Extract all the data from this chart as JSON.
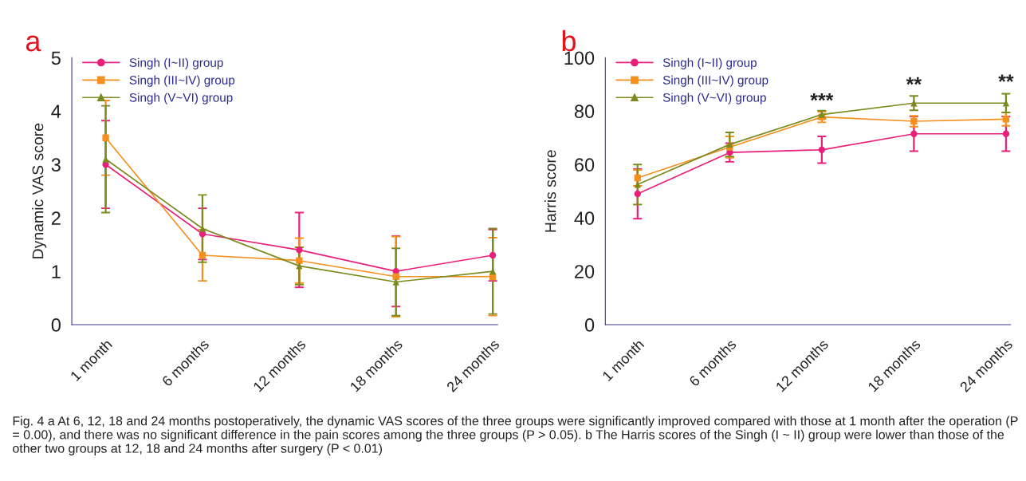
{
  "chart_data": [
    {
      "type": "line",
      "title": "a",
      "ylabel": "Dynamic VAS score",
      "categories": [
        "1 month",
        "6 months",
        "12 months",
        "18 months",
        "24 months"
      ],
      "ylim": [
        0,
        5
      ],
      "yticks": [
        0,
        1,
        2,
        3,
        4,
        5
      ],
      "grid": false,
      "legend": "top left",
      "series": [
        {
          "name": "Singh (I~II) group",
          "color": "#e8207a",
          "marker": "circle",
          "values": [
            3.0,
            1.7,
            1.4,
            1.0,
            1.3
          ],
          "errors": [
            0.82,
            0.48,
            0.7,
            0.66,
            0.48
          ]
        },
        {
          "name": "Singh (III~IV) group",
          "color": "#f5901e",
          "marker": "square",
          "values": [
            3.5,
            1.3,
            1.2,
            0.9,
            0.9
          ],
          "errors": [
            0.7,
            0.48,
            0.42,
            0.75,
            0.73
          ]
        },
        {
          "name": "Singh (V~VI) group",
          "color": "#7d8a1e",
          "marker": "triangle",
          "values": [
            3.1,
            1.8,
            1.1,
            0.8,
            1.0
          ],
          "errors": [
            1.0,
            0.63,
            0.35,
            0.63,
            0.8
          ]
        }
      ],
      "annotations": [
        "Fig. 4 a At 6, 12, 18 and 24 months postoperatively, the dynamic VAS scores of the three groups were significantly improved compared with those at 1 month after the operation (P = 0.00), and there was no significant difference in the pain scores among the three groups (P > 0.05). b The Harris scores of the Singh (I ~ II) group were lower than those of the other two groups at 12, 18 and 24 months after surgery (P < 0.01)"
      ]
    },
    {
      "type": "line",
      "title": "b",
      "ylabel": "Harris score",
      "categories": [
        "1 month",
        "6 months",
        "12 months",
        "18 months",
        "24 months"
      ],
      "ylim": [
        0,
        100
      ],
      "yticks": [
        0,
        20,
        40,
        60,
        80,
        100
      ],
      "grid": false,
      "legend": "top left",
      "series": [
        {
          "name": "Singh (I~II) group",
          "color": "#e8207a",
          "marker": "circle",
          "values": [
            49,
            64.5,
            65.5,
            71.5,
            71.5
          ],
          "errors": [
            9.3,
            3.5,
            5,
            6.5,
            6.5
          ]
        },
        {
          "name": "Singh (III~IV) group",
          "color": "#f5901e",
          "marker": "square",
          "values": [
            55,
            66.5,
            77.8,
            76.2,
            77
          ],
          "errors": [
            3,
            4,
            2,
            2,
            2.5
          ]
        },
        {
          "name": "Singh (V~VI) group",
          "color": "#7d8a1e",
          "marker": "triangle",
          "values": [
            52.5,
            67.5,
            78.7,
            83,
            83
          ],
          "errors": [
            7.5,
            4.5,
            1.5,
            2.7,
            3.5
          ]
        }
      ],
      "annotations": [
        {
          "text": "***",
          "x": "12 months",
          "y": 80
        },
        {
          "text": "**",
          "x": "18 months",
          "y": 86
        },
        {
          "text": "**",
          "x": "24 months",
          "y": 87
        }
      ]
    }
  ]
}
